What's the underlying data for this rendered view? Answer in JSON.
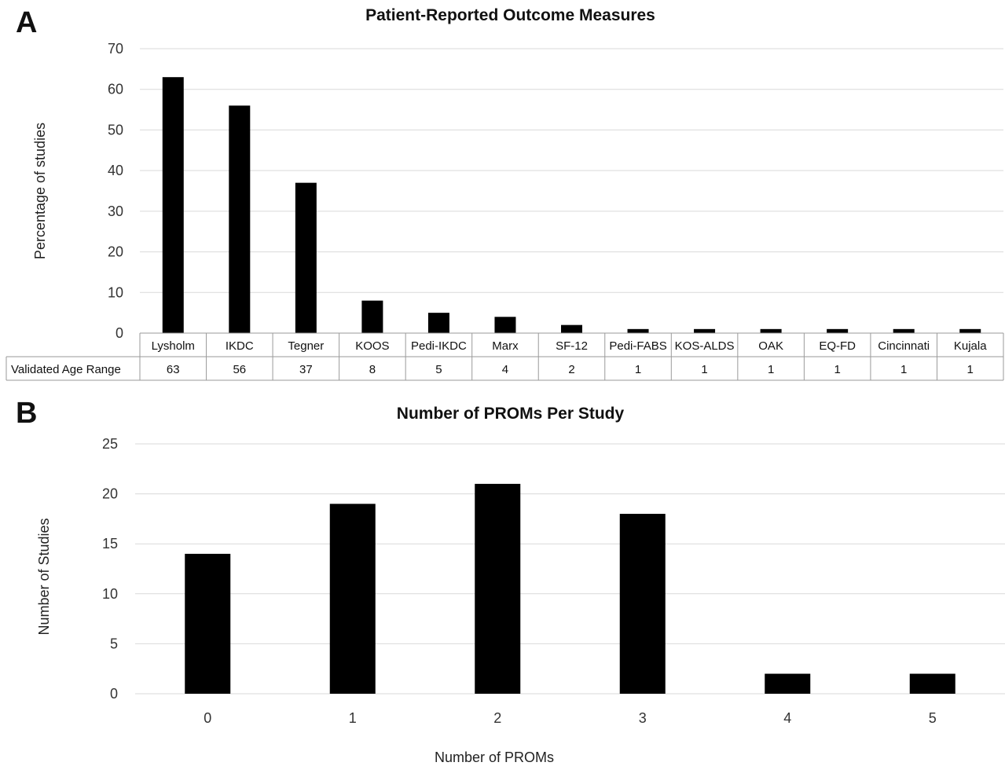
{
  "panels": {
    "a": {
      "letter": "A"
    },
    "b": {
      "letter": "B"
    }
  },
  "colors": {
    "bar": "#000000",
    "grid": "#d9d9d9",
    "table_border": "#9a9a9a"
  },
  "chart_data": [
    {
      "type": "bar",
      "title": "Patient-Reported Outcome Measures",
      "xlabel": "",
      "ylabel": "Percentage of studies",
      "ylim": [
        0,
        70
      ],
      "yticks": [
        0,
        10,
        20,
        30,
        40,
        50,
        60,
        70
      ],
      "grid": true,
      "categories": [
        "Lysholm",
        "IKDC",
        "Tegner",
        "KOOS",
        "Pedi-IKDC",
        "Marx",
        "SF-12",
        "Pedi-FABS",
        "KOS-ALDS",
        "OAK",
        "EQ-FD",
        "Cincinnati",
        "Kujala"
      ],
      "values": [
        63,
        56,
        37,
        8,
        5,
        4,
        2,
        1,
        1,
        1,
        1,
        1,
        1
      ],
      "data_table": {
        "row_label": "Validated Age Range",
        "values": [
          "63",
          "56",
          "37",
          "8",
          "5",
          "4",
          "2",
          "1",
          "1",
          "1",
          "1",
          "1",
          "1"
        ]
      }
    },
    {
      "type": "bar",
      "title": "Number of PROMs Per Study",
      "xlabel": "Number of PROMs",
      "ylabel": "Number of Studies",
      "ylim": [
        0,
        25
      ],
      "yticks": [
        0,
        5,
        10,
        15,
        20,
        25
      ],
      "grid": true,
      "categories": [
        "0",
        "1",
        "2",
        "3",
        "4",
        "5"
      ],
      "values": [
        14,
        19,
        21,
        18,
        2,
        2
      ]
    }
  ]
}
